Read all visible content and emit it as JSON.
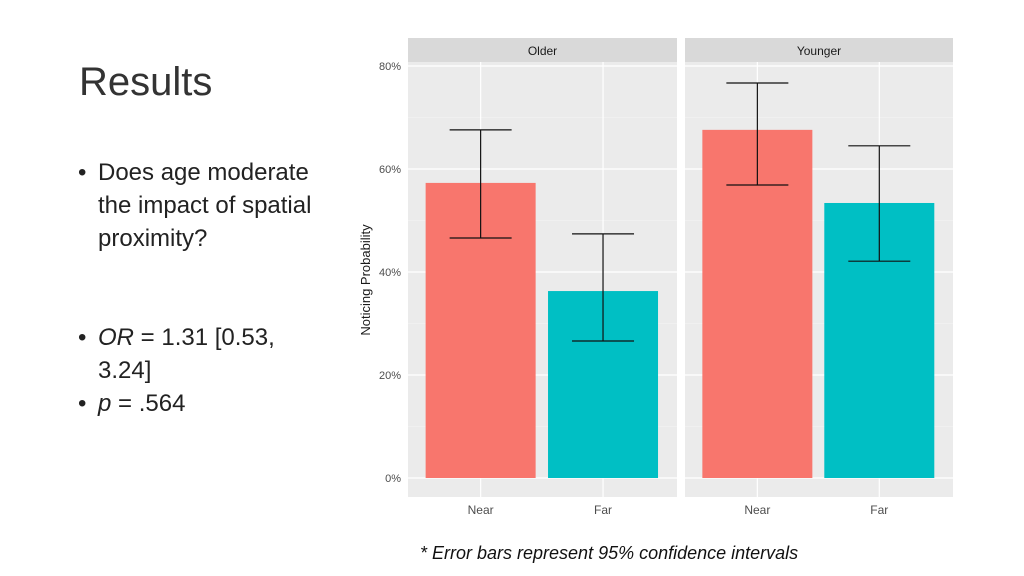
{
  "slide": {
    "title": "Results",
    "bullets": [
      {
        "text": "Does age moderate the impact of spatial proximity?"
      },
      {
        "prefix": "OR",
        "text": " = 1.31 [0.53, 3.24]"
      },
      {
        "prefix": "p",
        "text": " = .564"
      }
    ],
    "footnote": "* Error bars represent 95% confidence intervals"
  },
  "chart_data": {
    "type": "bar",
    "facets": [
      "Older",
      "Younger"
    ],
    "categories": [
      "Near",
      "Far"
    ],
    "ylabel": "Noticing Probability",
    "xlabel": "",
    "ylim": [
      0,
      83
    ],
    "yticks": [
      0,
      20,
      40,
      60,
      80
    ],
    "ytick_labels": [
      "0%",
      "20%",
      "40%",
      "60%",
      "80%"
    ],
    "colors": {
      "Near": "#F8766D",
      "Far": "#00BFC4"
    },
    "grid": true,
    "series": [
      {
        "facet": "Older",
        "values": [
          57.3,
          36.3
        ],
        "ci_low": [
          46.6,
          26.6
        ],
        "ci_high": [
          67.6,
          47.4
        ]
      },
      {
        "facet": "Younger",
        "values": [
          67.6,
          53.4
        ],
        "ci_low": [
          56.9,
          42.1
        ],
        "ci_high": [
          76.7,
          64.5
        ]
      }
    ]
  }
}
